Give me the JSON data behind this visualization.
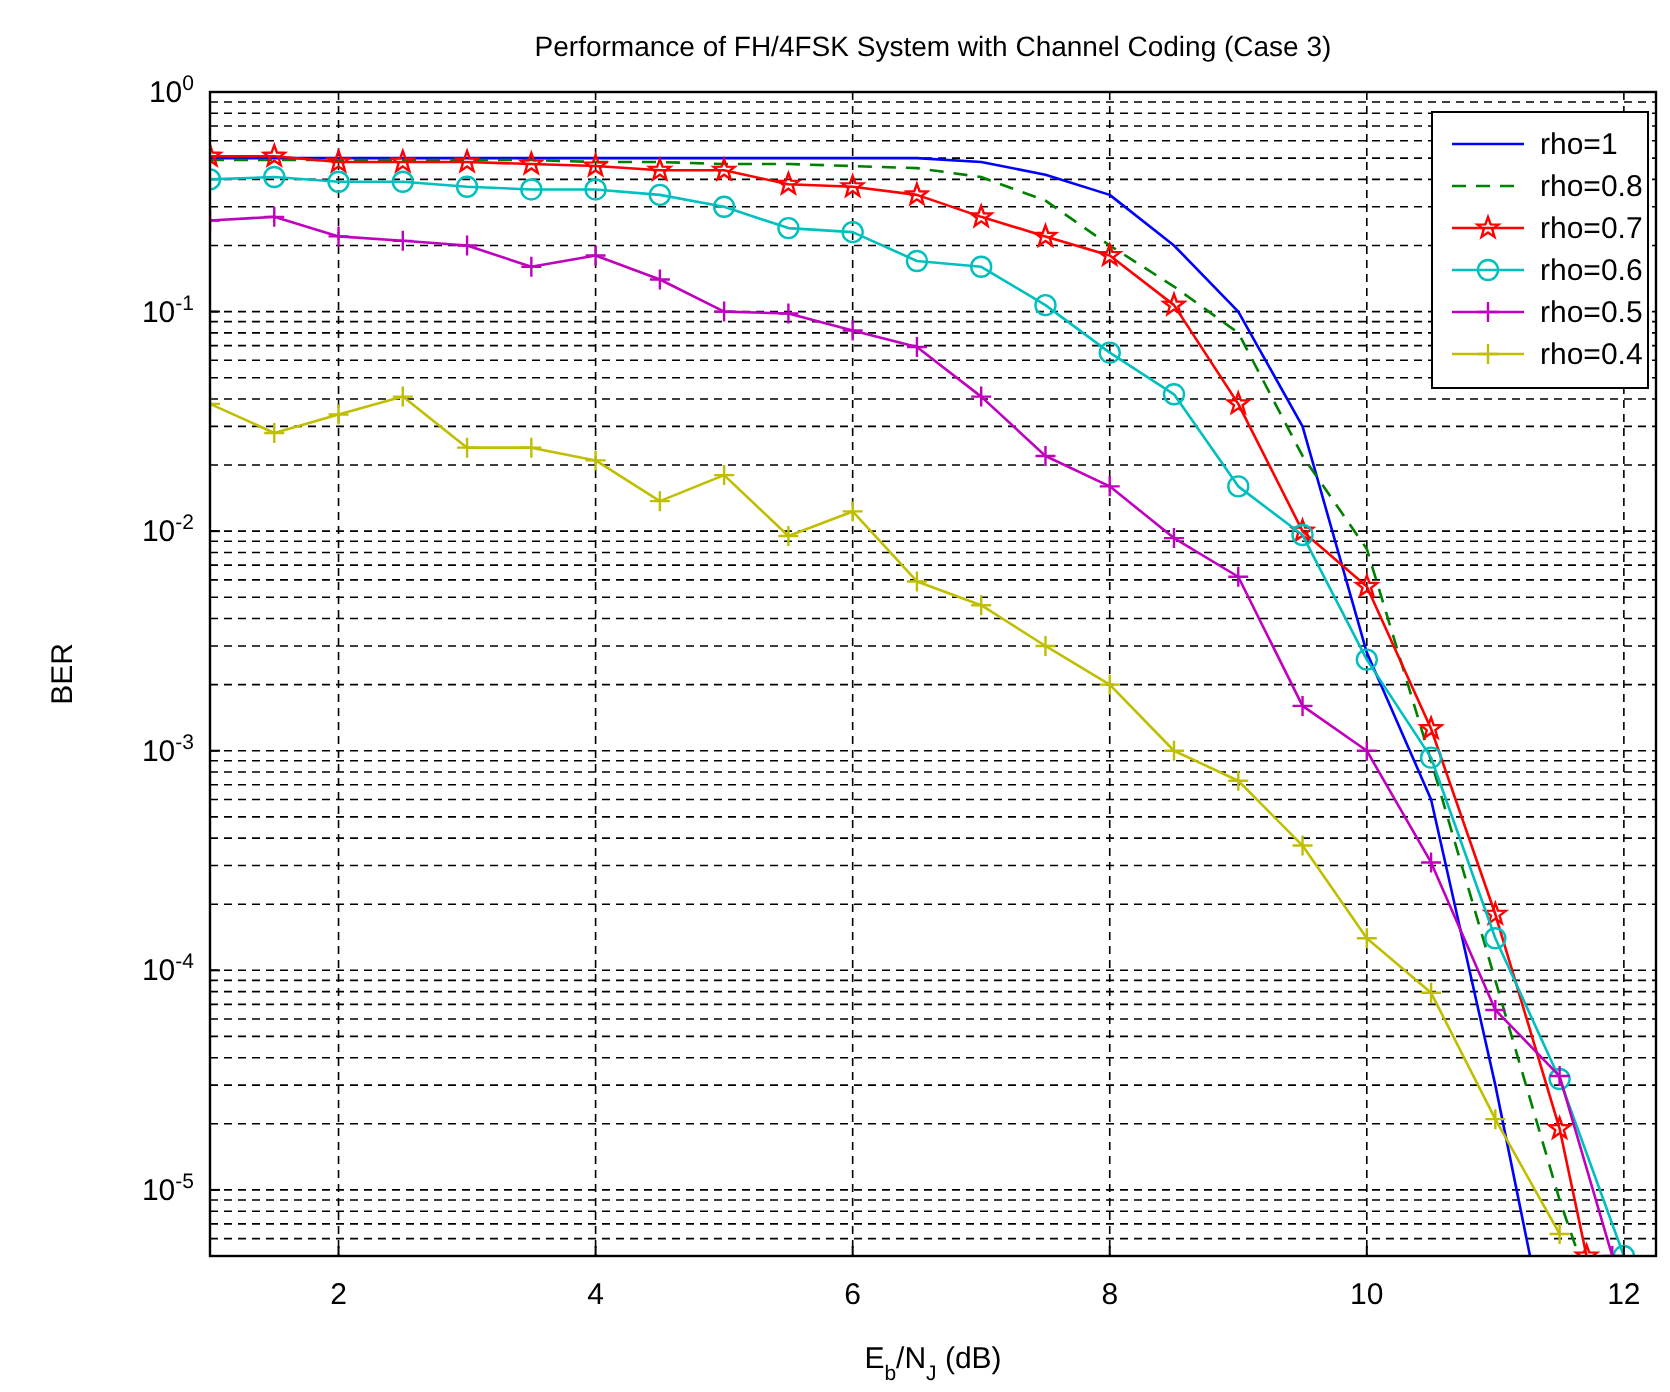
{
  "chart_data": {
    "type": "line",
    "title": "Performance of FH/4FSK System with Channel Coding (Case 3)",
    "xlabel": "E$_{b}$/N$_{J}$ (dB)",
    "ylabel": "BER",
    "log": "y",
    "grid": true,
    "legend": "top right",
    "xlim": [
      1,
      12.25
    ],
    "xticks": [
      2,
      4,
      6,
      8,
      10,
      12
    ],
    "ylim": [
      5e-06,
      1
    ],
    "yticks": [
      {
        "value": 1,
        "label": "10$^{0}$"
      },
      {
        "value": 0.1,
        "label": "10$^{-1}$"
      },
      {
        "value": 0.01,
        "label": "10$^{-2}$"
      },
      {
        "value": 0.001,
        "label": "10$^{-3}$"
      },
      {
        "value": 0.0001,
        "label": "10$^{-4}$"
      },
      {
        "value": 1e-05,
        "label": "10$^{-5}$"
      }
    ],
    "series": [
      {
        "name": "rho=1",
        "color": "#0000ff",
        "marker": "none",
        "line_style": "solid",
        "x": [
          1,
          1.5,
          2,
          2.5,
          3,
          3.5,
          4,
          4.5,
          5,
          5.5,
          6,
          6.5,
          7,
          7.5,
          8,
          8.5,
          9,
          9.5,
          10,
          10.5,
          11,
          11.27
        ],
        "values": [
          0.5,
          0.5,
          0.5,
          0.5,
          0.5,
          0.5,
          0.5,
          0.5,
          0.5,
          0.5,
          0.5,
          0.5,
          0.48,
          0.42,
          0.34,
          0.2,
          0.1,
          0.03,
          0.0028,
          0.0006,
          3e-05,
          5e-06
        ]
      },
      {
        "name": "rho=0.8",
        "color": "#008000",
        "marker": "none",
        "line_style": "dashed",
        "x": [
          1,
          1.5,
          2,
          2.5,
          3,
          3.5,
          4,
          4.5,
          5,
          5.5,
          6,
          6.5,
          7,
          7.5,
          8,
          8.5,
          9,
          9.5,
          10,
          10.5,
          11,
          11.5,
          11.65
        ],
        "values": [
          0.49,
          0.49,
          0.49,
          0.49,
          0.49,
          0.49,
          0.48,
          0.48,
          0.47,
          0.47,
          0.46,
          0.45,
          0.41,
          0.32,
          0.2,
          0.13,
          0.08,
          0.022,
          0.0083,
          0.0009,
          9e-05,
          9e-06,
          5e-06
        ]
      },
      {
        "name": "rho=0.7",
        "color": "#ff0000",
        "marker": "star",
        "line_style": "solid",
        "x": [
          1,
          1.5,
          2,
          2.5,
          3,
          3.5,
          4,
          4.5,
          5,
          5.5,
          6,
          6.5,
          7,
          7.5,
          8,
          8.5,
          9,
          9.5,
          10,
          10.5,
          11,
          11.5,
          11.71
        ],
        "values": [
          0.51,
          0.51,
          0.48,
          0.48,
          0.48,
          0.47,
          0.46,
          0.44,
          0.44,
          0.38,
          0.37,
          0.34,
          0.27,
          0.22,
          0.18,
          0.107,
          0.038,
          0.01,
          0.0056,
          0.00126,
          0.00018,
          1.9e-05,
          5e-06
        ]
      },
      {
        "name": "rho=0.6",
        "color": "#00bfbf",
        "marker": "circle",
        "line_style": "solid",
        "x": [
          1,
          1.5,
          2,
          2.5,
          3,
          3.5,
          4,
          4.5,
          5,
          5.5,
          6,
          6.5,
          7,
          7.5,
          8,
          8.5,
          9,
          9.5,
          10,
          10.5,
          11,
          11.5,
          12
        ],
        "values": [
          0.4,
          0.41,
          0.39,
          0.39,
          0.37,
          0.36,
          0.36,
          0.34,
          0.3,
          0.24,
          0.23,
          0.17,
          0.16,
          0.107,
          0.065,
          0.042,
          0.016,
          0.0096,
          0.0026,
          0.00093,
          0.00014,
          3.2e-05,
          5e-06
        ]
      },
      {
        "name": "rho=0.5",
        "color": "#bf00bf",
        "marker": "cross",
        "line_style": "solid",
        "x": [
          1,
          1.5,
          2,
          2.5,
          3,
          3.5,
          4,
          4.5,
          5,
          5.5,
          6,
          6.5,
          7,
          7.5,
          8,
          8.5,
          9,
          9.5,
          10,
          10.5,
          11,
          11.5,
          11.91
        ],
        "values": [
          0.26,
          0.27,
          0.22,
          0.21,
          0.2,
          0.16,
          0.18,
          0.14,
          0.1,
          0.098,
          0.082,
          0.069,
          0.041,
          0.022,
          0.016,
          0.0093,
          0.0062,
          0.0016,
          0.001,
          0.00031,
          6.6e-05,
          3.3e-05,
          5e-06
        ]
      },
      {
        "name": "rho=0.4",
        "color": "#bfbf00",
        "marker": "cross",
        "line_style": "solid",
        "x": [
          1,
          1.5,
          2,
          2.5,
          3,
          3.5,
          4,
          4.5,
          5,
          5.5,
          6,
          6.5,
          7,
          7.5,
          8,
          8.5,
          9,
          9.5,
          10,
          10.5,
          11,
          11.5
        ],
        "values": [
          0.038,
          0.028,
          0.034,
          0.041,
          0.024,
          0.024,
          0.021,
          0.0137,
          0.018,
          0.0095,
          0.0123,
          0.0059,
          0.0046,
          0.003,
          0.002,
          0.001,
          0.00073,
          0.00037,
          0.00014,
          7.9e-05,
          2.1e-05,
          6.3e-06
        ]
      }
    ]
  }
}
